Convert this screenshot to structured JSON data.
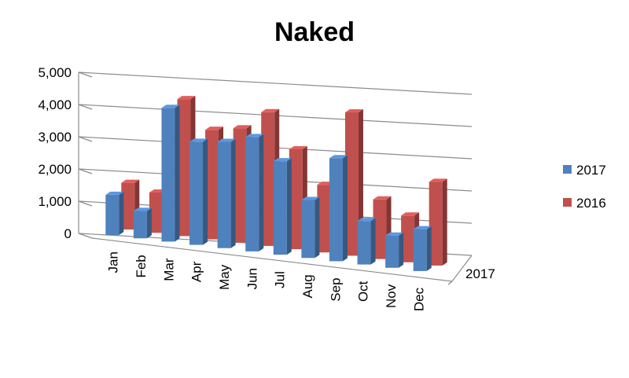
{
  "chart_data": {
    "type": "bar",
    "title": "Naked",
    "categories": [
      "Jan",
      "Feb",
      "Mar",
      "Apr",
      "May",
      "Jun",
      "Jul",
      "Aug",
      "Sep",
      "Oct",
      "Nov",
      "Dec"
    ],
    "series": [
      {
        "name": "2017",
        "color": "#4f81bd",
        "values": [
          1250,
          850,
          4150,
          3200,
          3300,
          3550,
          2900,
          1800,
          3200,
          1350,
          1000,
          1300
        ]
      },
      {
        "name": "2016",
        "color": "#c0504d",
        "values": [
          1450,
          1250,
          4250,
          3400,
          3550,
          4150,
          3100,
          2100,
          4450,
          1850,
          1450,
          2600
        ]
      }
    ],
    "y_ticks": [
      "0",
      "1,000",
      "2,000",
      "3,000",
      "4,000",
      "5,000"
    ],
    "ylim": [
      0,
      5000
    ],
    "depth_axis_label": "2017",
    "legend_position": "right",
    "grid": true
  }
}
